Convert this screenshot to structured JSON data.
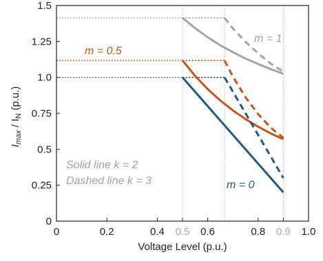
{
  "chart_data": {
    "type": "line",
    "xlabel": "Voltage Level (p.u.)",
    "ylabel_main": "I",
    "ylabel_sub1": "max",
    "ylabel_mid": " / I",
    "ylabel_sub2": "N",
    "ylabel_tail": " (p.u.)",
    "xlim": [
      0,
      1.0
    ],
    "ylim": [
      0,
      1.5
    ],
    "xticks": [
      0,
      0.2,
      0.4,
      0.5,
      0.6,
      0.8,
      0.9,
      1.0
    ],
    "xtick_labels": [
      "0",
      "0.2",
      "0.4",
      "0.5",
      "0.6",
      "0.8",
      "0.9",
      "1.0"
    ],
    "yticks": [
      0,
      0.25,
      0.5,
      0.75,
      1.0,
      1.25,
      1.5
    ],
    "ytick_labels": [
      "0",
      "0.25",
      "0.5",
      "0.75",
      "1.0",
      "1.25",
      "1.5"
    ],
    "grid": false,
    "colors": {
      "m0": "#1f5a7e",
      "m05": "#c9541a",
      "m1": "#a3a3a3",
      "guide": "#9a9a9a",
      "axis": "#222222",
      "highlight_tick": "#aaaaaa"
    },
    "annotations": {
      "m1": "m = 1",
      "m05": "m = 0.5",
      "m0": "m = 0",
      "solid": "Solid line k = 2",
      "dashed": "Dashed line k = 3"
    },
    "series": [
      {
        "style": "solid",
        "color": "m1",
        "x": [
          0.5,
          0.55,
          0.6,
          0.65,
          0.7,
          0.75,
          0.8,
          0.85,
          0.9
        ],
        "y": [
          1.414,
          1.342,
          1.279,
          1.223,
          1.175,
          1.131,
          1.093,
          1.057,
          1.025
        ]
      },
      {
        "style": "dashed",
        "color": "m1",
        "x": [
          0.667,
          0.7,
          0.75,
          0.8,
          0.85,
          0.9
        ],
        "y": [
          1.414,
          1.34,
          1.248,
          1.167,
          1.096,
          1.04
        ]
      },
      {
        "style": "solid",
        "color": "m05",
        "x": [
          0.5,
          0.55,
          0.6,
          0.65,
          0.7,
          0.75,
          0.8,
          0.85,
          0.9
        ],
        "y": [
          1.118,
          1.01,
          0.918,
          0.839,
          0.77,
          0.71,
          0.657,
          0.61,
          0.57
        ]
      },
      {
        "style": "dashed",
        "color": "m05",
        "x": [
          0.667,
          0.7,
          0.75,
          0.8,
          0.85,
          0.9
        ],
        "y": [
          1.118,
          1.005,
          0.862,
          0.745,
          0.65,
          0.58
        ]
      },
      {
        "style": "solid",
        "color": "m0",
        "x": [
          0.5,
          0.9
        ],
        "y": [
          1.0,
          0.2
        ]
      },
      {
        "style": "dashed",
        "color": "m0",
        "x": [
          0.667,
          0.9
        ],
        "y": [
          1.0,
          0.3
        ]
      },
      {
        "style": "guide",
        "color": "m1",
        "x": [
          0,
          0.5
        ],
        "y": [
          1.414,
          1.414
        ]
      },
      {
        "style": "guide",
        "color": "m05",
        "x": [
          0,
          0.5
        ],
        "y": [
          1.118,
          1.118
        ]
      },
      {
        "style": "guide",
        "color": "m0",
        "x": [
          0,
          0.5
        ],
        "y": [
          1.0,
          1.0
        ]
      },
      {
        "style": "flat",
        "color": "m1",
        "x": [
          0.5,
          0.667
        ],
        "y": [
          1.414,
          1.414
        ]
      },
      {
        "style": "flat",
        "color": "m05",
        "x": [
          0.5,
          0.667
        ],
        "y": [
          1.118,
          1.118
        ]
      },
      {
        "style": "flat",
        "color": "m0",
        "x": [
          0.5,
          0.667
        ],
        "y": [
          1.0,
          1.0
        ]
      }
    ],
    "vlines": [
      0.5,
      0.667,
      0.9
    ]
  }
}
